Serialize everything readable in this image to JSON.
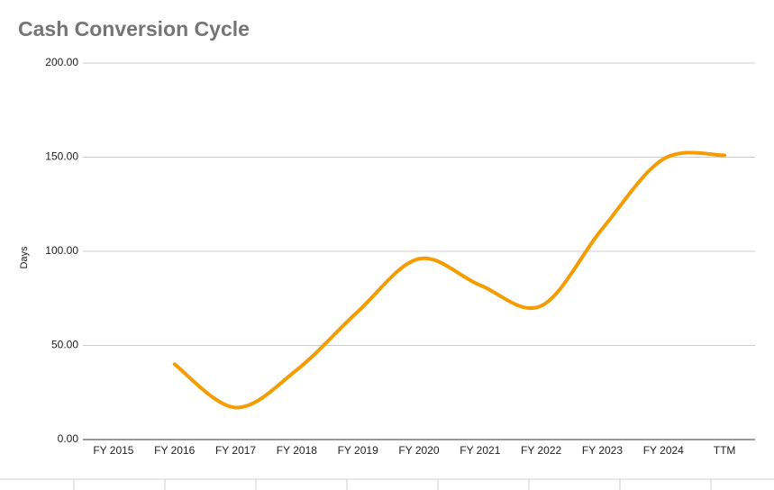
{
  "chart_data": {
    "type": "line",
    "title": "Cash Conversion Cycle",
    "y_label": "Days",
    "categories": [
      "FY 2015",
      "FY 2016",
      "FY 2017",
      "FY 2018",
      "FY 2019",
      "FY 2020",
      "FY 2021",
      "FY 2022",
      "FY 2023",
      "FY 2024",
      "TTM"
    ],
    "series": [
      {
        "name": "Cash Conversion Cycle",
        "color": "#f59c00",
        "values": [
          null,
          40,
          17,
          37,
          68,
          96,
          82,
          71,
          112,
          149,
          151
        ]
      }
    ],
    "ylim": [
      0,
      200
    ],
    "yticks": [
      {
        "value": 0,
        "label": "0.00"
      },
      {
        "value": 50,
        "label": "50.00"
      },
      {
        "value": 100,
        "label": "100.00"
      },
      {
        "value": 150,
        "label": "150.00"
      },
      {
        "value": 200,
        "label": "200.00"
      }
    ],
    "grid": true,
    "smooth": true
  }
}
